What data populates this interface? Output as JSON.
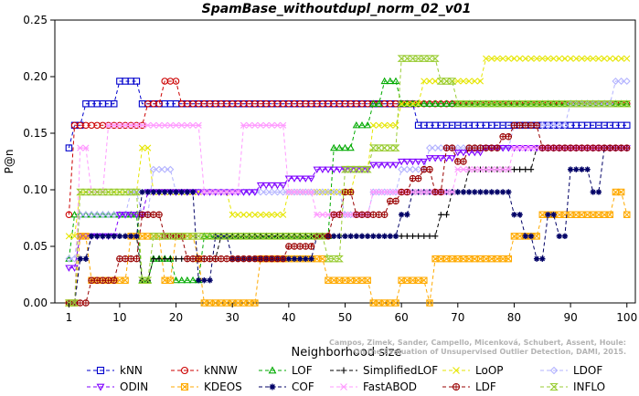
{
  "chart_data": {
    "type": "line",
    "title": "SpamBase_withoutdupl_norm_02_v01",
    "xlabel": "Neighborhood size",
    "ylabel": "P@n",
    "xlim": [
      0,
      100
    ],
    "ylim": [
      0,
      0.25
    ],
    "xticks": [
      1,
      10,
      20,
      30,
      40,
      50,
      60,
      70,
      80,
      90,
      100
    ],
    "yticks": [
      0.0,
      0.05,
      0.1,
      0.15,
      0.2,
      0.25
    ],
    "ytick_labels": [
      "0.00",
      "0.05",
      "0.10",
      "0.15",
      "0.20",
      "0.25"
    ],
    "grid": false,
    "legend_position": "bottom",
    "credit": "Campos, Zimek, Sander, Campello, Micenková, Schubert, Assent, Houle:\nOn the Evaluation of Unsupervised Outlier Detection, DAMI, 2015.",
    "series": [
      {
        "name": "kNN",
        "color": "#0000cc",
        "marker": "square",
        "x": [
          1,
          2,
          3,
          4,
          5,
          10,
          12,
          14,
          15,
          20,
          30,
          40,
          50,
          60,
          62,
          63,
          64,
          70,
          80,
          90,
          100
        ],
        "values": [
          0.137,
          0.157,
          0.157,
          0.176,
          0.176,
          0.196,
          0.196,
          0.176,
          0.176,
          0.176,
          0.176,
          0.176,
          0.176,
          0.176,
          0.176,
          0.157,
          0.157,
          0.157,
          0.157,
          0.157,
          0.157
        ]
      },
      {
        "name": "kNNW",
        "color": "#cc0000",
        "marker": "circle",
        "x": [
          1,
          2,
          4,
          8,
          10,
          12,
          13,
          15,
          18,
          20,
          21,
          30,
          40,
          50,
          60,
          70,
          80,
          90,
          100
        ],
        "values": [
          0.078,
          0.157,
          0.157,
          0.157,
          0.157,
          0.157,
          0.157,
          0.176,
          0.196,
          0.196,
          0.176,
          0.176,
          0.176,
          0.176,
          0.176,
          0.176,
          0.176,
          0.176,
          0.176
        ]
      },
      {
        "name": "LOF",
        "color": "#00aa00",
        "marker": "triangle",
        "x": [
          1,
          2,
          3,
          4,
          5,
          8,
          12,
          14,
          16,
          18,
          20,
          22,
          25,
          30,
          40,
          46,
          48,
          50,
          52,
          55,
          57,
          60,
          62,
          65,
          70,
          80,
          90,
          100
        ],
        "values": [
          0.039,
          0.078,
          0.078,
          0.078,
          0.078,
          0.078,
          0.078,
          0.02,
          0.039,
          0.039,
          0.02,
          0.02,
          0.059,
          0.059,
          0.059,
          0.059,
          0.137,
          0.137,
          0.157,
          0.176,
          0.196,
          0.176,
          0.176,
          0.176,
          0.176,
          0.176,
          0.176,
          0.176
        ]
      },
      {
        "name": "SimplifiedLOF",
        "color": "#000000",
        "marker": "plus",
        "x": [
          1,
          2,
          3,
          5,
          8,
          12,
          14,
          16,
          18,
          20,
          24,
          27,
          28,
          30,
          40,
          46,
          50,
          60,
          63,
          67,
          69,
          72,
          75,
          80,
          84,
          90,
          100
        ],
        "values": [
          0.0,
          0.0,
          0.039,
          0.059,
          0.059,
          0.059,
          0.02,
          0.039,
          0.039,
          0.039,
          0.039,
          0.039,
          0.059,
          0.059,
          0.059,
          0.059,
          0.059,
          0.059,
          0.059,
          0.078,
          0.098,
          0.118,
          0.118,
          0.118,
          0.137,
          0.137,
          0.137
        ]
      },
      {
        "name": "LoOP",
        "color": "#e6e600",
        "marker": "x",
        "x": [
          1,
          3,
          5,
          8,
          12,
          14,
          16,
          20,
          25,
          30,
          35,
          40,
          45,
          47,
          52,
          55,
          60,
          64,
          67,
          70,
          75,
          80,
          90,
          100
        ],
        "values": [
          0.059,
          0.098,
          0.098,
          0.098,
          0.098,
          0.137,
          0.098,
          0.098,
          0.098,
          0.078,
          0.078,
          0.098,
          0.098,
          0.098,
          0.118,
          0.157,
          0.176,
          0.196,
          0.196,
          0.196,
          0.216,
          0.216,
          0.216,
          0.216
        ]
      },
      {
        "name": "LDOF",
        "color": "#b3b3ff",
        "marker": "diamond",
        "x": [
          1,
          3,
          5,
          8,
          12,
          14,
          16,
          17,
          20,
          25,
          30,
          35,
          40,
          45,
          50,
          55,
          60,
          65,
          70,
          80,
          90,
          98,
          100
        ],
        "values": [
          0.039,
          0.078,
          0.078,
          0.078,
          0.098,
          0.078,
          0.118,
          0.118,
          0.098,
          0.098,
          0.098,
          0.098,
          0.098,
          0.098,
          0.078,
          0.098,
          0.118,
          0.137,
          0.137,
          0.157,
          0.176,
          0.196,
          0.196
        ]
      },
      {
        "name": "ODIN",
        "color": "#7f00ff",
        "marker": "triangle-down",
        "x": [
          1,
          3,
          5,
          8,
          10,
          15,
          20,
          25,
          30,
          35,
          40,
          45,
          50,
          55,
          60,
          65,
          70,
          75,
          80,
          90,
          100
        ],
        "values": [
          0.031,
          0.059,
          0.059,
          0.059,
          0.078,
          0.098,
          0.098,
          0.098,
          0.098,
          0.104,
          0.11,
          0.118,
          0.118,
          0.122,
          0.125,
          0.128,
          0.133,
          0.137,
          0.137,
          0.137,
          0.137
        ]
      },
      {
        "name": "KDEOS",
        "color": "#ffaa00",
        "marker": "square-x",
        "x": [
          1,
          3,
          5,
          8,
          10,
          12,
          15,
          18,
          20,
          22,
          24,
          25,
          30,
          35,
          40,
          45,
          47,
          50,
          55,
          60,
          62,
          65,
          66,
          70,
          75,
          80,
          85,
          90,
          95,
          98,
          100
        ],
        "values": [
          0.0,
          0.059,
          0.02,
          0.02,
          0.02,
          0.059,
          0.059,
          0.02,
          0.059,
          0.059,
          0.039,
          0.0,
          0.0,
          0.039,
          0.039,
          0.039,
          0.02,
          0.02,
          0.0,
          0.02,
          0.02,
          0.0,
          0.039,
          0.039,
          0.039,
          0.059,
          0.078,
          0.078,
          0.078,
          0.098,
          0.078
        ]
      },
      {
        "name": "COF",
        "color": "#000066",
        "marker": "asterisk",
        "x": [
          1,
          2,
          3,
          5,
          8,
          10,
          14,
          16,
          18,
          20,
          22,
          24,
          27,
          30,
          35,
          40,
          45,
          50,
          55,
          58,
          60,
          62,
          65,
          70,
          75,
          80,
          82,
          84,
          86,
          88,
          90,
          92,
          94,
          96,
          98,
          100
        ],
        "values": [
          0.0,
          0.0,
          0.039,
          0.059,
          0.059,
          0.059,
          0.098,
          0.098,
          0.098,
          0.098,
          0.098,
          0.02,
          0.059,
          0.039,
          0.039,
          0.039,
          0.059,
          0.059,
          0.059,
          0.059,
          0.078,
          0.098,
          0.098,
          0.098,
          0.098,
          0.078,
          0.059,
          0.039,
          0.078,
          0.059,
          0.118,
          0.118,
          0.098,
          0.137,
          0.137,
          0.137
        ]
      },
      {
        "name": "FastABOD",
        "color": "#ff99ff",
        "marker": "star",
        "x": [
          1,
          3,
          5,
          8,
          10,
          12,
          15,
          20,
          22,
          25,
          30,
          32,
          35,
          37,
          40,
          45,
          50,
          55,
          60,
          65,
          70,
          80,
          90,
          100
        ],
        "values": [
          0.0,
          0.137,
          0.098,
          0.157,
          0.157,
          0.157,
          0.157,
          0.157,
          0.157,
          0.098,
          0.098,
          0.157,
          0.157,
          0.157,
          0.098,
          0.078,
          0.078,
          0.098,
          0.098,
          0.098,
          0.118,
          0.137,
          0.137,
          0.137
        ]
      },
      {
        "name": "LDF",
        "color": "#990000",
        "marker": "circle-plus",
        "x": [
          1,
          5,
          10,
          14,
          16,
          18,
          20,
          22,
          25,
          30,
          35,
          40,
          45,
          48,
          50,
          52,
          55,
          58,
          60,
          62,
          64,
          66,
          68,
          70,
          72,
          75,
          78,
          80,
          85,
          90,
          100
        ],
        "values": [
          0.0,
          0.02,
          0.039,
          0.078,
          0.078,
          0.059,
          0.059,
          0.039,
          0.039,
          0.039,
          0.039,
          0.05,
          0.059,
          0.078,
          0.098,
          0.078,
          0.078,
          0.09,
          0.098,
          0.11,
          0.118,
          0.098,
          0.137,
          0.125,
          0.137,
          0.137,
          0.147,
          0.157,
          0.137,
          0.137,
          0.137
        ]
      },
      {
        "name": "INFLO",
        "color": "#99cc33",
        "marker": "hourglass",
        "x": [
          1,
          3,
          5,
          8,
          10,
          14,
          16,
          18,
          20,
          25,
          30,
          35,
          40,
          45,
          47,
          50,
          55,
          60,
          62,
          65,
          67,
          70,
          80,
          90,
          100
        ],
        "values": [
          0.0,
          0.098,
          0.098,
          0.098,
          0.098,
          0.02,
          0.059,
          0.059,
          0.059,
          0.059,
          0.059,
          0.059,
          0.059,
          0.059,
          0.039,
          0.118,
          0.137,
          0.216,
          0.216,
          0.216,
          0.196,
          0.176,
          0.176,
          0.176,
          0.176
        ]
      }
    ]
  }
}
